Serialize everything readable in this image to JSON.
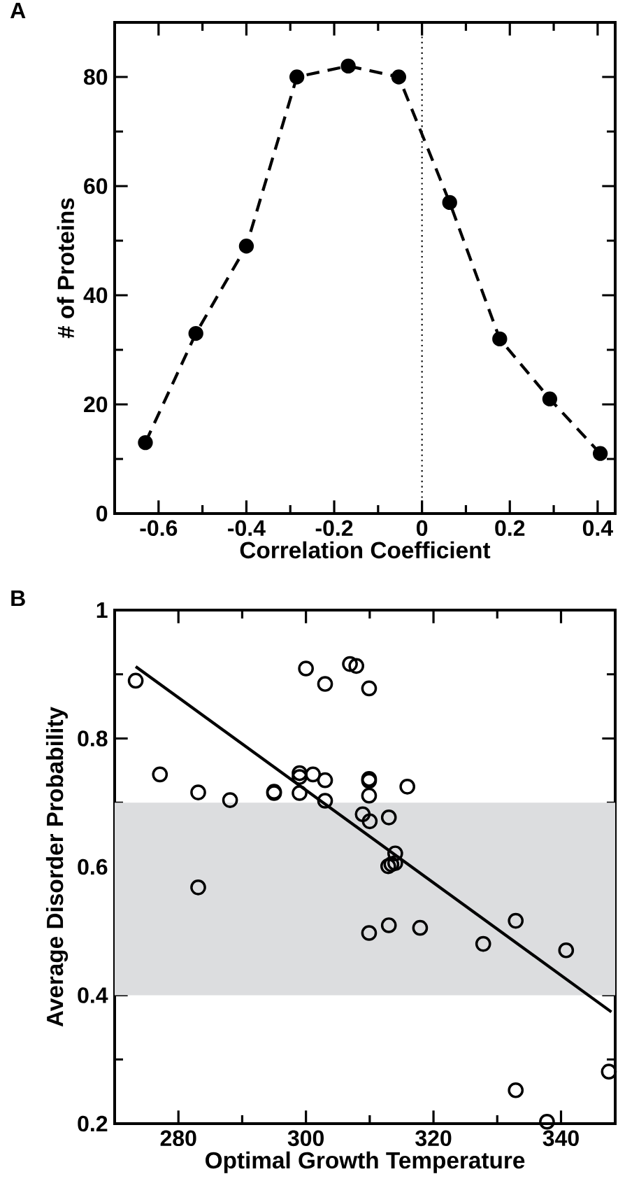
{
  "chart_data": [
    {
      "type": "line",
      "title": "A",
      "xlabel": "Correlation Coefficient",
      "ylabel": "# of Proteins",
      "xlim": [
        -0.7,
        0.44
      ],
      "ylim": [
        0,
        90
      ],
      "xticks": [
        -0.6,
        -0.4,
        -0.2,
        0,
        0.2,
        0.4
      ],
      "yticks": [
        0,
        20,
        40,
        60,
        80
      ],
      "marker": "circle",
      "line_style": "dashed",
      "ref_lines": [
        {
          "axis": "x",
          "value": 0,
          "line_style": "dotted"
        }
      ],
      "series": [
        {
          "color": "#000000",
          "x": [
            -0.63,
            -0.515,
            -0.4,
            -0.285,
            -0.168,
            -0.053,
            0.063,
            0.177,
            0.291,
            0.406
          ],
          "values": [
            13,
            33,
            49,
            80,
            82,
            80,
            57,
            32,
            21,
            11
          ]
        }
      ]
    },
    {
      "type": "scatter",
      "title": "B",
      "xlabel": "Optimal Growth Temperature",
      "ylabel": "Average Disorder Probability",
      "xlim": [
        270,
        348.5
      ],
      "ylim": [
        0.2,
        1
      ],
      "xticks": [
        280,
        300,
        320,
        340
      ],
      "yticks": [
        0.2,
        0.4,
        0.6,
        0.8,
        1
      ],
      "marker": "circle",
      "bands": [
        {
          "axis": "y",
          "from": 0.4,
          "to": 0.7,
          "color": "#dcdddf"
        }
      ],
      "series": [
        {
          "color": "#000000",
          "x": [
            273.3,
            277.1,
            283.1,
            283.1,
            288.1,
            295.0,
            295.0,
            299.0,
            299.0,
            299.0,
            300.0,
            301.1,
            303.0,
            303.0,
            303.0,
            306.9,
            307.9,
            309.9,
            309.9,
            309.9,
            309.9,
            308.9,
            310.0,
            309.9,
            313.0,
            312.9,
            313.4,
            314.0,
            314.0,
            313.0,
            315.9,
            317.9,
            327.8,
            332.9,
            332.9,
            337.8,
            340.8,
            347.5
          ],
          "values": [
            0.89,
            0.744,
            0.716,
            0.568,
            0.704,
            0.717,
            0.715,
            0.746,
            0.74,
            0.715,
            0.909,
            0.744,
            0.885,
            0.735,
            0.703,
            0.916,
            0.913,
            0.878,
            0.737,
            0.734,
            0.711,
            0.682,
            0.671,
            0.497,
            0.677,
            0.601,
            0.604,
            0.621,
            0.606,
            0.509,
            0.725,
            0.505,
            0.48,
            0.516,
            0.252,
            0.203,
            0.47,
            0.281
          ]
        },
        {
          "type": "line",
          "color": "#000000",
          "marker": "none",
          "line_style": "solid",
          "x": [
            273.3,
            347.9
          ],
          "values": [
            0.912,
            0.374
          ]
        }
      ]
    }
  ]
}
